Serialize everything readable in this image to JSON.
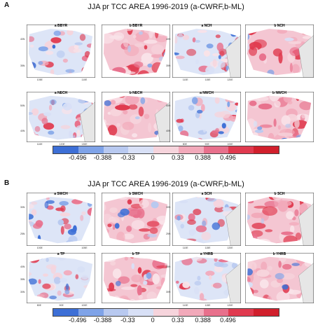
{
  "panels": [
    {
      "letter": "A",
      "title": "JJA pr TCC AREA 1996-2019 (a-CWRF,b-ML)",
      "rows": [
        [
          {
            "label": "a BBYR",
            "lat_ticks": [
              "40N",
              "35N"
            ],
            "lon_ticks": [
              "105E",
              "110E"
            ]
          },
          {
            "label": "b BBYR",
            "lat_ticks": [],
            "lon_ticks": []
          },
          {
            "label": "a NCH",
            "lat_ticks": [
              "40N",
              "35N"
            ],
            "lon_ticks": [
              "110E",
              "115E",
              "120E"
            ]
          },
          {
            "label": "b NCH",
            "lat_ticks": [],
            "lon_ticks": []
          }
        ],
        [
          {
            "label": "a NECH",
            "lat_ticks": [
              "50N",
              "40N"
            ],
            "lon_ticks": [
              "110E",
              "120E",
              "130E"
            ]
          },
          {
            "label": "b NECH",
            "lat_ticks": [],
            "lon_ticks": []
          },
          {
            "label": "a NWCH",
            "lat_ticks": [
              "50N",
              "40N"
            ],
            "lon_ticks": [
              "80E",
              "90E",
              "100E"
            ]
          },
          {
            "label": "b NWCH",
            "lat_ticks": [],
            "lon_ticks": []
          }
        ]
      ]
    },
    {
      "letter": "B",
      "title": "JJA pr TCC AREA 1996-2019 (a-CWRF,b-ML)",
      "rows": [
        [
          {
            "label": "a SWCH",
            "lat_ticks": [
              "30N",
              "25N"
            ],
            "lon_ticks": [
              "100E",
              "105E"
            ]
          },
          {
            "label": "b SWCH",
            "lat_ticks": [],
            "lon_ticks": []
          },
          {
            "label": "a SCH",
            "lat_ticks": [
              "30N",
              "25N"
            ],
            "lon_ticks": [
              "110E",
              "115E",
              "120E"
            ]
          },
          {
            "label": "b SCH",
            "lat_ticks": [],
            "lon_ticks": []
          }
        ],
        [
          {
            "label": "a TP",
            "lat_ticks": [
              "40N",
              "35N",
              "30N"
            ],
            "lon_ticks": [
              "80E",
              "90E",
              "100E"
            ]
          },
          {
            "label": "b TP",
            "lat_ticks": [],
            "lon_ticks": []
          },
          {
            "label": "a YHRB",
            "lat_ticks": [
              "35N",
              "30N"
            ],
            "lon_ticks": [
              "110E",
              "115E",
              "120E"
            ]
          },
          {
            "label": "b YHRB",
            "lat_ticks": [],
            "lon_ticks": []
          }
        ]
      ]
    }
  ],
  "colorbar": {
    "labels": [
      "-0.496",
      "-0.388",
      "-0.33",
      "0",
      "0.33",
      "0.388",
      "0.496"
    ],
    "colors": [
      "#3d6fd6",
      "#7fa3e8",
      "#b8c9f0",
      "#d8e0f6",
      "#f6d4dc",
      "#f2a9ba",
      "#e8708c",
      "#e03a4f",
      "#d11f2c"
    ]
  }
}
